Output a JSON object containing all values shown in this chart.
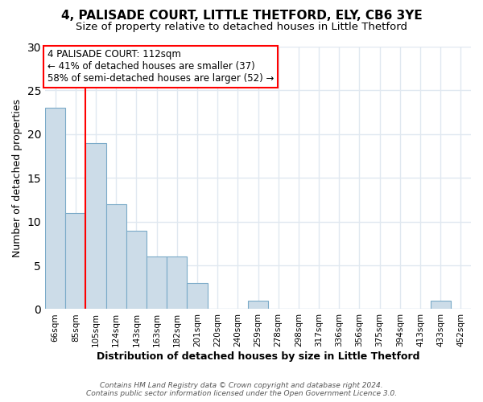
{
  "title1": "4, PALISADE COURT, LITTLE THETFORD, ELY, CB6 3YE",
  "title2": "Size of property relative to detached houses in Little Thetford",
  "xlabel": "Distribution of detached houses by size in Little Thetford",
  "ylabel": "Number of detached properties",
  "bin_labels": [
    "66sqm",
    "85sqm",
    "105sqm",
    "124sqm",
    "143sqm",
    "163sqm",
    "182sqm",
    "201sqm",
    "220sqm",
    "240sqm",
    "259sqm",
    "278sqm",
    "298sqm",
    "317sqm",
    "336sqm",
    "356sqm",
    "375sqm",
    "394sqm",
    "413sqm",
    "433sqm",
    "452sqm"
  ],
  "bar_heights": [
    23,
    11,
    19,
    12,
    9,
    6,
    6,
    3,
    0,
    0,
    1,
    0,
    0,
    0,
    0,
    0,
    0,
    0,
    0,
    1,
    0
  ],
  "bar_color": "#ccdce8",
  "bar_edge_color": "#7aaac8",
  "bar_edge_width": 0.8,
  "red_line_x": 1.5,
  "ylim": [
    0,
    30
  ],
  "yticks": [
    0,
    5,
    10,
    15,
    20,
    25,
    30
  ],
  "annotation_text": "4 PALISADE COURT: 112sqm\n← 41% of detached houses are smaller (37)\n58% of semi-detached houses are larger (52) →",
  "annotation_box_color": "white",
  "annotation_box_edge_color": "red",
  "footer_text": "Contains HM Land Registry data © Crown copyright and database right 2024.\nContains public sector information licensed under the Open Government Licence 3.0.",
  "background_color": "#ffffff",
  "grid_color": "#e0e8f0",
  "title1_fontsize": 11,
  "title2_fontsize": 9.5,
  "xlabel_fontsize": 9,
  "ylabel_fontsize": 9,
  "annotation_fontsize": 8.5
}
